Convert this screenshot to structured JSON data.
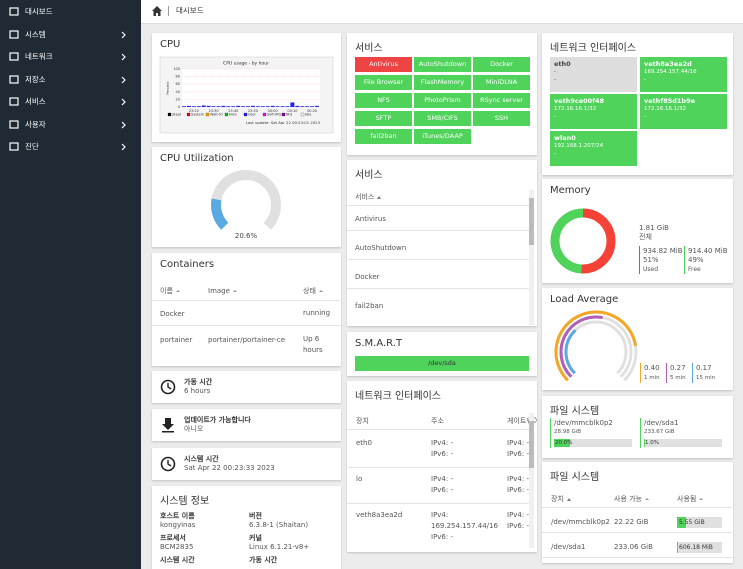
{
  "sidebar": {
    "items": [
      "대시보드",
      "시스템",
      "네트워크",
      "저장소",
      "서비스",
      "사용자",
      "진단"
    ]
  },
  "topbar": {
    "breadcrumb": "대시보드"
  },
  "cpu": {
    "title": "CPU"
  },
  "containers": {
    "title": "Containers",
    "columns": [
      "이름",
      "Image",
      "상태"
    ],
    "rows": [
      [
        "Docker",
        null,
        "running"
      ],
      [
        "portainer",
        "portainer/portainer-ce",
        "Up 6 hours"
      ]
    ]
  },
  "uptime": {
    "label": "가동 시간",
    "value": "6 hours"
  },
  "updates": {
    "label": "업데이트가 가능합니다",
    "value": "아니오"
  },
  "system_time": {
    "label": "시스템 시간",
    "value": "Sat Apr 22 00:23:33 2023"
  },
  "system_info": {
    "title": "시스템 정보",
    "fields": [
      {
        "label": "호스트 이름",
        "value": "kongyinas"
      },
      {
        "label": "버전",
        "value": "6.3.8-1 (Shaitan)"
      },
      {
        "label": "프로세서",
        "value": "BCM2835"
      },
      {
        "label": "커널",
        "value": "Linux 6.1.21-v8+"
      },
      {
        "label": "시스템 시간"
      },
      {
        "label": "가동 시간"
      }
    ]
  },
  "services": {
    "title": "서비스",
    "tiles": [
      {
        "name": "Antivirus",
        "color": "#ef4444"
      },
      {
        "name": "AutoShutdown",
        "color": "#4fd35a"
      },
      {
        "name": "Docker",
        "color": "#4fd35a"
      },
      {
        "name": "File Browser",
        "color": "#4fd35a"
      },
      {
        "name": "FlashMemory",
        "color": "#4fd35a"
      },
      {
        "name": "MiniDLNA",
        "color": "#4fd35a"
      },
      {
        "name": "NFS",
        "color": "#4fd35a"
      },
      {
        "name": "PhotoPrism",
        "color": "#4fd35a"
      },
      {
        "name": "RSync server",
        "color": "#4fd35a"
      },
      {
        "name": "SFTP",
        "color": "#4fd35a"
      },
      {
        "name": "SMB/CIFS",
        "color": "#4fd35a"
      },
      {
        "name": "SSH",
        "color": "#4fd35a"
      },
      {
        "name": "fail2ban",
        "color": "#4fd35a"
      },
      {
        "name": "iTunes/DAAP",
        "color": "#4fd35a"
      }
    ]
  },
  "services_table": {
    "title": "서비스",
    "header": "서비스",
    "rows": [
      "Antivirus",
      "AutoShutdown",
      "Docker",
      "fail2ban"
    ]
  },
  "smart": {
    "title": "S.M.A.R.T",
    "devices": [
      {
        "name": "/dev/sda",
        "color": "#4fd35a"
      }
    ]
  },
  "network_table": {
    "title": "네트워크 인터페이스",
    "columns": [
      "장치",
      "주소",
      "게이트웨이"
    ],
    "rows": [
      {
        "device": "eth0",
        "address": [
          "IPv4: -",
          "IPv6: -"
        ],
        "gateway": [
          "IPv4: -",
          "IPv6: -"
        ]
      },
      {
        "device": "lo",
        "address": [
          "IPv4: -",
          "IPv6: -"
        ],
        "gateway": [
          "IPv4: -",
          "IPv6: -"
        ]
      },
      {
        "device": "veth8a3ea2d",
        "address": [
          "IPv4:",
          "169.254.157.44/16",
          "IPv6: -"
        ],
        "gateway": [
          "IPv4: -",
          "IPv6: -"
        ]
      }
    ]
  },
  "network_tiles": {
    "title": "네트워크 인터페이스",
    "items": [
      {
        "name": "eth0",
        "address": "-",
        "gateway": "-",
        "color": "#dddddd"
      },
      {
        "name": "veth8a3ea2d",
        "address": "169.254.157.44/16",
        "gateway": "-",
        "color": "#4fd35a"
      },
      {
        "name": "veth9ce00f48",
        "address": "172.16.16.1/32",
        "gateway": "-",
        "color": "#4fd35a"
      },
      {
        "name": "vethf85d1b9e",
        "address": "172.16.16.1/32",
        "gateway": "-",
        "color": "#4fd35a"
      },
      {
        "name": "wlan0",
        "address": "192.168.1.207/24",
        "gateway": "-",
        "color": "#4fd35a"
      }
    ]
  },
  "filesystem_table": {
    "title": "파일 시스템",
    "columns": [
      "장치",
      "사용 가능",
      "사용됨"
    ],
    "rows": [
      [
        "/dev/mmcblk0p2",
        "22.22 GiB",
        "5.55 GiB"
      ],
      [
        "/dev/sda1",
        "233.06 GiB",
        "606.18 MiB"
      ]
    ]
  },
  "chart_data": [
    {
      "type": "bar",
      "title": "CPU usage - by hour",
      "y_label": "Percent",
      "ylim": [
        0,
        100
      ],
      "yticks": [
        0,
        20,
        40,
        60,
        80,
        100
      ],
      "grid": true,
      "categories": [
        null,
        null,
        "23:20",
        null,
        null,
        null,
        "23:30",
        null,
        null,
        null,
        "23:40",
        null,
        null,
        null,
        "23:50",
        null,
        null,
        null,
        "00:00",
        null,
        null,
        null,
        "00:10",
        null,
        null,
        null,
        "00:20",
        null
      ],
      "series": [
        {
          "name": "User",
          "color": "#2222ee",
          "values": [
            2,
            3,
            2,
            2,
            4,
            3,
            2,
            2,
            3,
            2,
            2,
            3,
            2,
            2,
            3,
            2,
            2,
            2,
            3,
            2,
            2,
            2,
            12,
            3,
            2,
            2,
            2,
            3
          ]
        }
      ],
      "legend": [
        {
          "name": "Steal",
          "color": "#000000"
        },
        {
          "name": "System",
          "color": "#ff0000"
        },
        {
          "name": "Wait-IO",
          "color": "#ffa500"
        },
        {
          "name": "Nice",
          "color": "#00cc00"
        },
        {
          "name": "User",
          "color": "#2222ee"
        },
        {
          "name": "Soft-IRQ",
          "color": "#ff00ff"
        },
        {
          "name": "IRQ",
          "color": "#8000a0"
        },
        {
          "name": "Idle",
          "color": "#f4f4f4"
        }
      ],
      "footer": "Last update: Sat Apr 22 00:23:01 2023"
    },
    {
      "type": "gauge",
      "title": "CPU Utilization",
      "values": [
        20.6
      ],
      "value_labels": [
        "20.6%"
      ],
      "ylim": [
        0,
        100
      ],
      "color": "#5aa9e0"
    },
    {
      "type": "donut",
      "title": "Memory",
      "total": "1.81 GiB",
      "total_label": "전체",
      "categories": [
        "Used",
        "Free"
      ],
      "values": [
        51,
        49
      ],
      "value_labels": [
        "51%",
        "49%"
      ],
      "amounts": [
        "934.82 MiB",
        "914.40 MiB"
      ],
      "colors": [
        "#f44336",
        "#4fd35a"
      ]
    },
    {
      "type": "radial",
      "title": "Load Average",
      "categories": [
        "1 min",
        "5 min",
        "15 min"
      ],
      "values": [
        0.4,
        0.27,
        0.17
      ],
      "value_labels": [
        "0.40",
        "0.27",
        "0.17"
      ],
      "colors": [
        "#f5a623",
        "#b05fb5",
        "#5aa9e0"
      ],
      "ylim": [
        0,
        0.5
      ]
    },
    {
      "type": "progress",
      "title": "파일 시스템",
      "categories": [
        "/dev/mmcblk0p2",
        "/dev/sda1"
      ],
      "sizes": [
        "28.98 GiB",
        "233.67 GiB"
      ],
      "values": [
        20,
        1
      ],
      "value_labels": [
        "20.0%",
        "1.0%"
      ],
      "ylim": [
        0,
        100
      ],
      "color": "#4fd35a"
    }
  ]
}
